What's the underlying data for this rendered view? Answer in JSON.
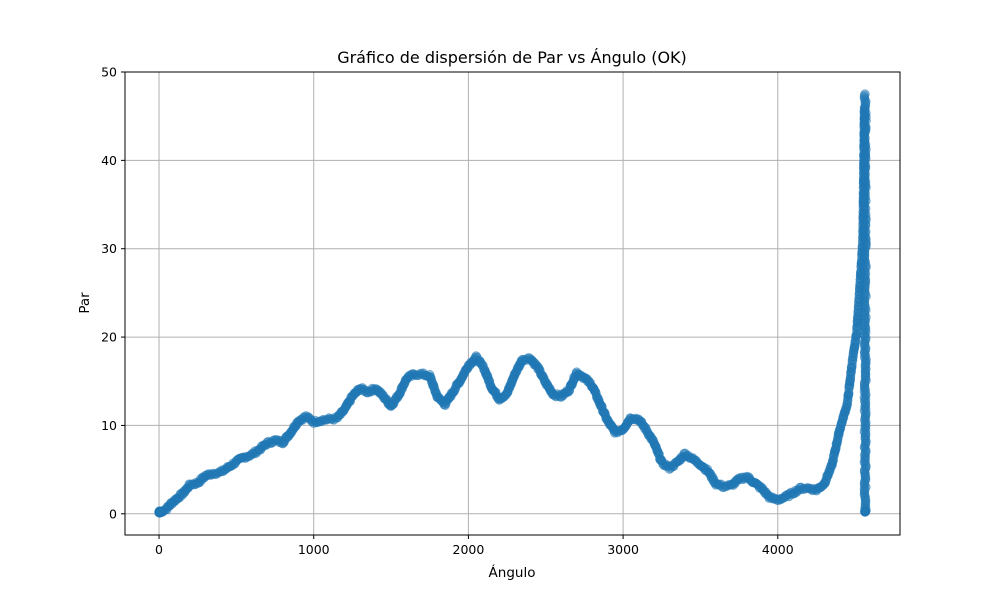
{
  "chart_data": {
    "type": "scatter",
    "title": "Gráfico de dispersión de Par vs Ángulo (OK)",
    "xlabel": "Ángulo",
    "ylabel": "Par",
    "xlim": [
      -220,
      4790
    ],
    "ylim": [
      -2.4,
      50
    ],
    "xticks": [
      "0",
      "1000",
      "2000",
      "3000",
      "4000"
    ],
    "yticks": [
      "0",
      "10",
      "20",
      "30",
      "40",
      "50"
    ],
    "grid": true,
    "marker_color": "#1f77b4",
    "marker_alpha": 0.5,
    "series": [
      {
        "outline_x": [
          0,
          20,
          50,
          80,
          120,
          160,
          200,
          250,
          300,
          350,
          400,
          450,
          500,
          550,
          600,
          650,
          700,
          750,
          800,
          850,
          900,
          950,
          1000,
          1050,
          1100,
          1150,
          1200,
          1250,
          1300,
          1350,
          1400,
          1450,
          1500,
          1550,
          1600,
          1650,
          1700,
          1750,
          1800,
          1850,
          1900,
          1950,
          2000,
          2050,
          2100,
          2150,
          2200,
          2250,
          2300,
          2350,
          2400,
          2450,
          2500,
          2550,
          2600,
          2650,
          2700,
          2750,
          2800,
          2850,
          2900,
          2950,
          3000,
          3050,
          3100,
          3150,
          3200,
          3250,
          3300,
          3350,
          3400,
          3450,
          3500,
          3550,
          3600,
          3650,
          3700,
          3750,
          3800,
          3850,
          3900,
          3950,
          4000,
          4050,
          4100,
          4150,
          4200,
          4250,
          4300,
          4350,
          4400,
          4450,
          4480,
          4510,
          4530,
          4550,
          4560
        ],
        "outline_y": [
          0.2,
          0.3,
          0.6,
          1.2,
          1.8,
          2.4,
          3.3,
          3.5,
          4.3,
          4.6,
          4.7,
          5.3,
          5.9,
          6.4,
          6.7,
          7.3,
          8.0,
          8.3,
          8.1,
          9.2,
          10.5,
          11.0,
          10.4,
          10.6,
          10.7,
          10.8,
          11.8,
          13.3,
          14.2,
          13.8,
          14.2,
          13.3,
          12.2,
          13.5,
          15.3,
          15.8,
          15.8,
          15.6,
          13.2,
          12.4,
          13.8,
          15.2,
          16.8,
          17.7,
          16.5,
          14.3,
          13.0,
          13.6,
          15.8,
          17.5,
          17.6,
          16.5,
          14.8,
          13.5,
          13.3,
          14.0,
          16.0,
          15.4,
          14.5,
          12.5,
          10.5,
          9.2,
          9.6,
          10.9,
          10.7,
          9.5,
          8.0,
          5.8,
          5.2,
          5.8,
          6.8,
          6.2,
          5.6,
          4.8,
          3.4,
          3.1,
          3.2,
          3.9,
          4.2,
          3.5,
          2.8,
          1.8,
          1.6,
          1.9,
          2.4,
          2.9,
          2.9,
          2.7,
          3.4,
          5.5,
          9.5,
          12.5,
          17.0,
          20.5,
          25.5,
          31.0,
          46.0
        ],
        "vertical_x": 4565,
        "vertical_y_range": [
          0.2,
          47.5
        ]
      }
    ]
  }
}
